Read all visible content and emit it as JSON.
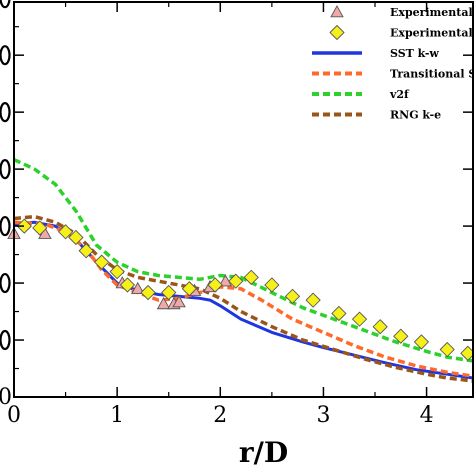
{
  "chart_data": {
    "type": "scatter",
    "xlabel": "r/D",
    "ylabel": "",
    "title": "",
    "xlim": [
      0,
      4.45
    ],
    "ylim": [
      0,
      10.4
    ],
    "xticks": [
      "0",
      "1",
      "2",
      "3",
      "4"
    ],
    "yticks": [
      "0",
      "",
      "",
      "",
      "",
      "",
      "",
      ""
    ],
    "legend_position": "top-right",
    "grid": false,
    "series": [
      {
        "name": "Experimental",
        "kind": "markers",
        "marker": "triangle",
        "color": "#f0a8a8",
        "points": [
          [
            0.0,
            4.3
          ],
          [
            0.3,
            4.3
          ],
          [
            1.05,
            3.0
          ],
          [
            1.2,
            2.85
          ],
          [
            1.45,
            2.45
          ],
          [
            1.55,
            2.45
          ],
          [
            1.6,
            2.5
          ],
          [
            1.75,
            2.8
          ],
          [
            1.9,
            2.9
          ],
          [
            2.05,
            3.05
          ]
        ]
      },
      {
        "name": "Experimental",
        "kind": "markers",
        "marker": "diamond",
        "color": "#f5f01a",
        "points": [
          [
            0.1,
            4.5
          ],
          [
            0.25,
            4.45
          ],
          [
            0.5,
            4.35
          ],
          [
            0.6,
            4.2
          ],
          [
            0.7,
            3.85
          ],
          [
            0.85,
            3.55
          ],
          [
            1.0,
            3.3
          ],
          [
            1.1,
            2.95
          ],
          [
            1.3,
            2.75
          ],
          [
            1.5,
            2.75
          ],
          [
            1.7,
            2.85
          ],
          [
            1.95,
            2.95
          ],
          [
            2.15,
            3.05
          ],
          [
            2.3,
            3.15
          ],
          [
            2.5,
            2.95
          ],
          [
            2.7,
            2.65
          ],
          [
            2.9,
            2.55
          ],
          [
            3.15,
            2.2
          ],
          [
            3.35,
            2.05
          ],
          [
            3.55,
            1.85
          ],
          [
            3.75,
            1.6
          ],
          [
            3.95,
            1.45
          ],
          [
            4.2,
            1.25
          ],
          [
            4.4,
            1.15
          ]
        ]
      },
      {
        "name": "SST k-w",
        "kind": "line",
        "dash": "solid",
        "color": "#1f35e0",
        "points": [
          [
            0.0,
            4.55
          ],
          [
            0.2,
            4.6
          ],
          [
            0.4,
            4.5
          ],
          [
            0.6,
            4.15
          ],
          [
            0.8,
            3.55
          ],
          [
            1.0,
            3.0
          ],
          [
            1.2,
            2.8
          ],
          [
            1.4,
            2.7
          ],
          [
            1.6,
            2.65
          ],
          [
            1.8,
            2.6
          ],
          [
            1.9,
            2.55
          ],
          [
            2.0,
            2.4
          ],
          [
            2.2,
            2.05
          ],
          [
            2.5,
            1.7
          ],
          [
            2.8,
            1.45
          ],
          [
            3.0,
            1.3
          ],
          [
            3.3,
            1.1
          ],
          [
            3.6,
            0.9
          ],
          [
            3.9,
            0.72
          ],
          [
            4.2,
            0.6
          ],
          [
            4.45,
            0.5
          ]
        ]
      },
      {
        "name": "Transitional S",
        "kind": "line",
        "dash": "dashed",
        "color": "#ff6a2a",
        "points": [
          [
            0.0,
            4.6
          ],
          [
            0.3,
            4.55
          ],
          [
            0.5,
            4.35
          ],
          [
            0.7,
            3.9
          ],
          [
            0.85,
            3.35
          ],
          [
            1.0,
            2.95
          ],
          [
            1.2,
            2.75
          ],
          [
            1.4,
            2.55
          ],
          [
            1.6,
            2.6
          ],
          [
            1.8,
            2.75
          ],
          [
            2.0,
            2.9
          ],
          [
            2.2,
            2.85
          ],
          [
            2.4,
            2.55
          ],
          [
            2.7,
            2.05
          ],
          [
            3.0,
            1.7
          ],
          [
            3.3,
            1.35
          ],
          [
            3.6,
            1.05
          ],
          [
            3.9,
            0.82
          ],
          [
            4.2,
            0.65
          ],
          [
            4.45,
            0.55
          ]
        ]
      },
      {
        "name": "v2f",
        "kind": "line",
        "dash": "dashed",
        "color": "#2cd12c",
        "points": [
          [
            0.0,
            6.25
          ],
          [
            0.2,
            6.0
          ],
          [
            0.4,
            5.6
          ],
          [
            0.6,
            4.9
          ],
          [
            0.8,
            4.0
          ],
          [
            1.0,
            3.55
          ],
          [
            1.2,
            3.3
          ],
          [
            1.4,
            3.2
          ],
          [
            1.6,
            3.15
          ],
          [
            1.8,
            3.1
          ],
          [
            2.0,
            3.2
          ],
          [
            2.2,
            3.15
          ],
          [
            2.5,
            2.75
          ],
          [
            2.8,
            2.35
          ],
          [
            3.1,
            2.05
          ],
          [
            3.4,
            1.75
          ],
          [
            3.7,
            1.45
          ],
          [
            4.0,
            1.2
          ],
          [
            4.2,
            1.05
          ],
          [
            4.45,
            0.95
          ]
        ]
      },
      {
        "name": "RNG k-e",
        "kind": "line",
        "dash": "dashed",
        "color": "#9a5518",
        "points": [
          [
            0.0,
            4.7
          ],
          [
            0.2,
            4.75
          ],
          [
            0.4,
            4.6
          ],
          [
            0.6,
            4.3
          ],
          [
            0.8,
            3.75
          ],
          [
            1.0,
            3.35
          ],
          [
            1.2,
            3.15
          ],
          [
            1.4,
            3.05
          ],
          [
            1.6,
            2.95
          ],
          [
            1.8,
            2.85
          ],
          [
            2.0,
            2.6
          ],
          [
            2.2,
            2.25
          ],
          [
            2.5,
            1.85
          ],
          [
            2.8,
            1.5
          ],
          [
            3.1,
            1.25
          ],
          [
            3.4,
            1.0
          ],
          [
            3.7,
            0.78
          ],
          [
            4.0,
            0.6
          ],
          [
            4.2,
            0.5
          ],
          [
            4.45,
            0.42
          ]
        ]
      }
    ]
  }
}
